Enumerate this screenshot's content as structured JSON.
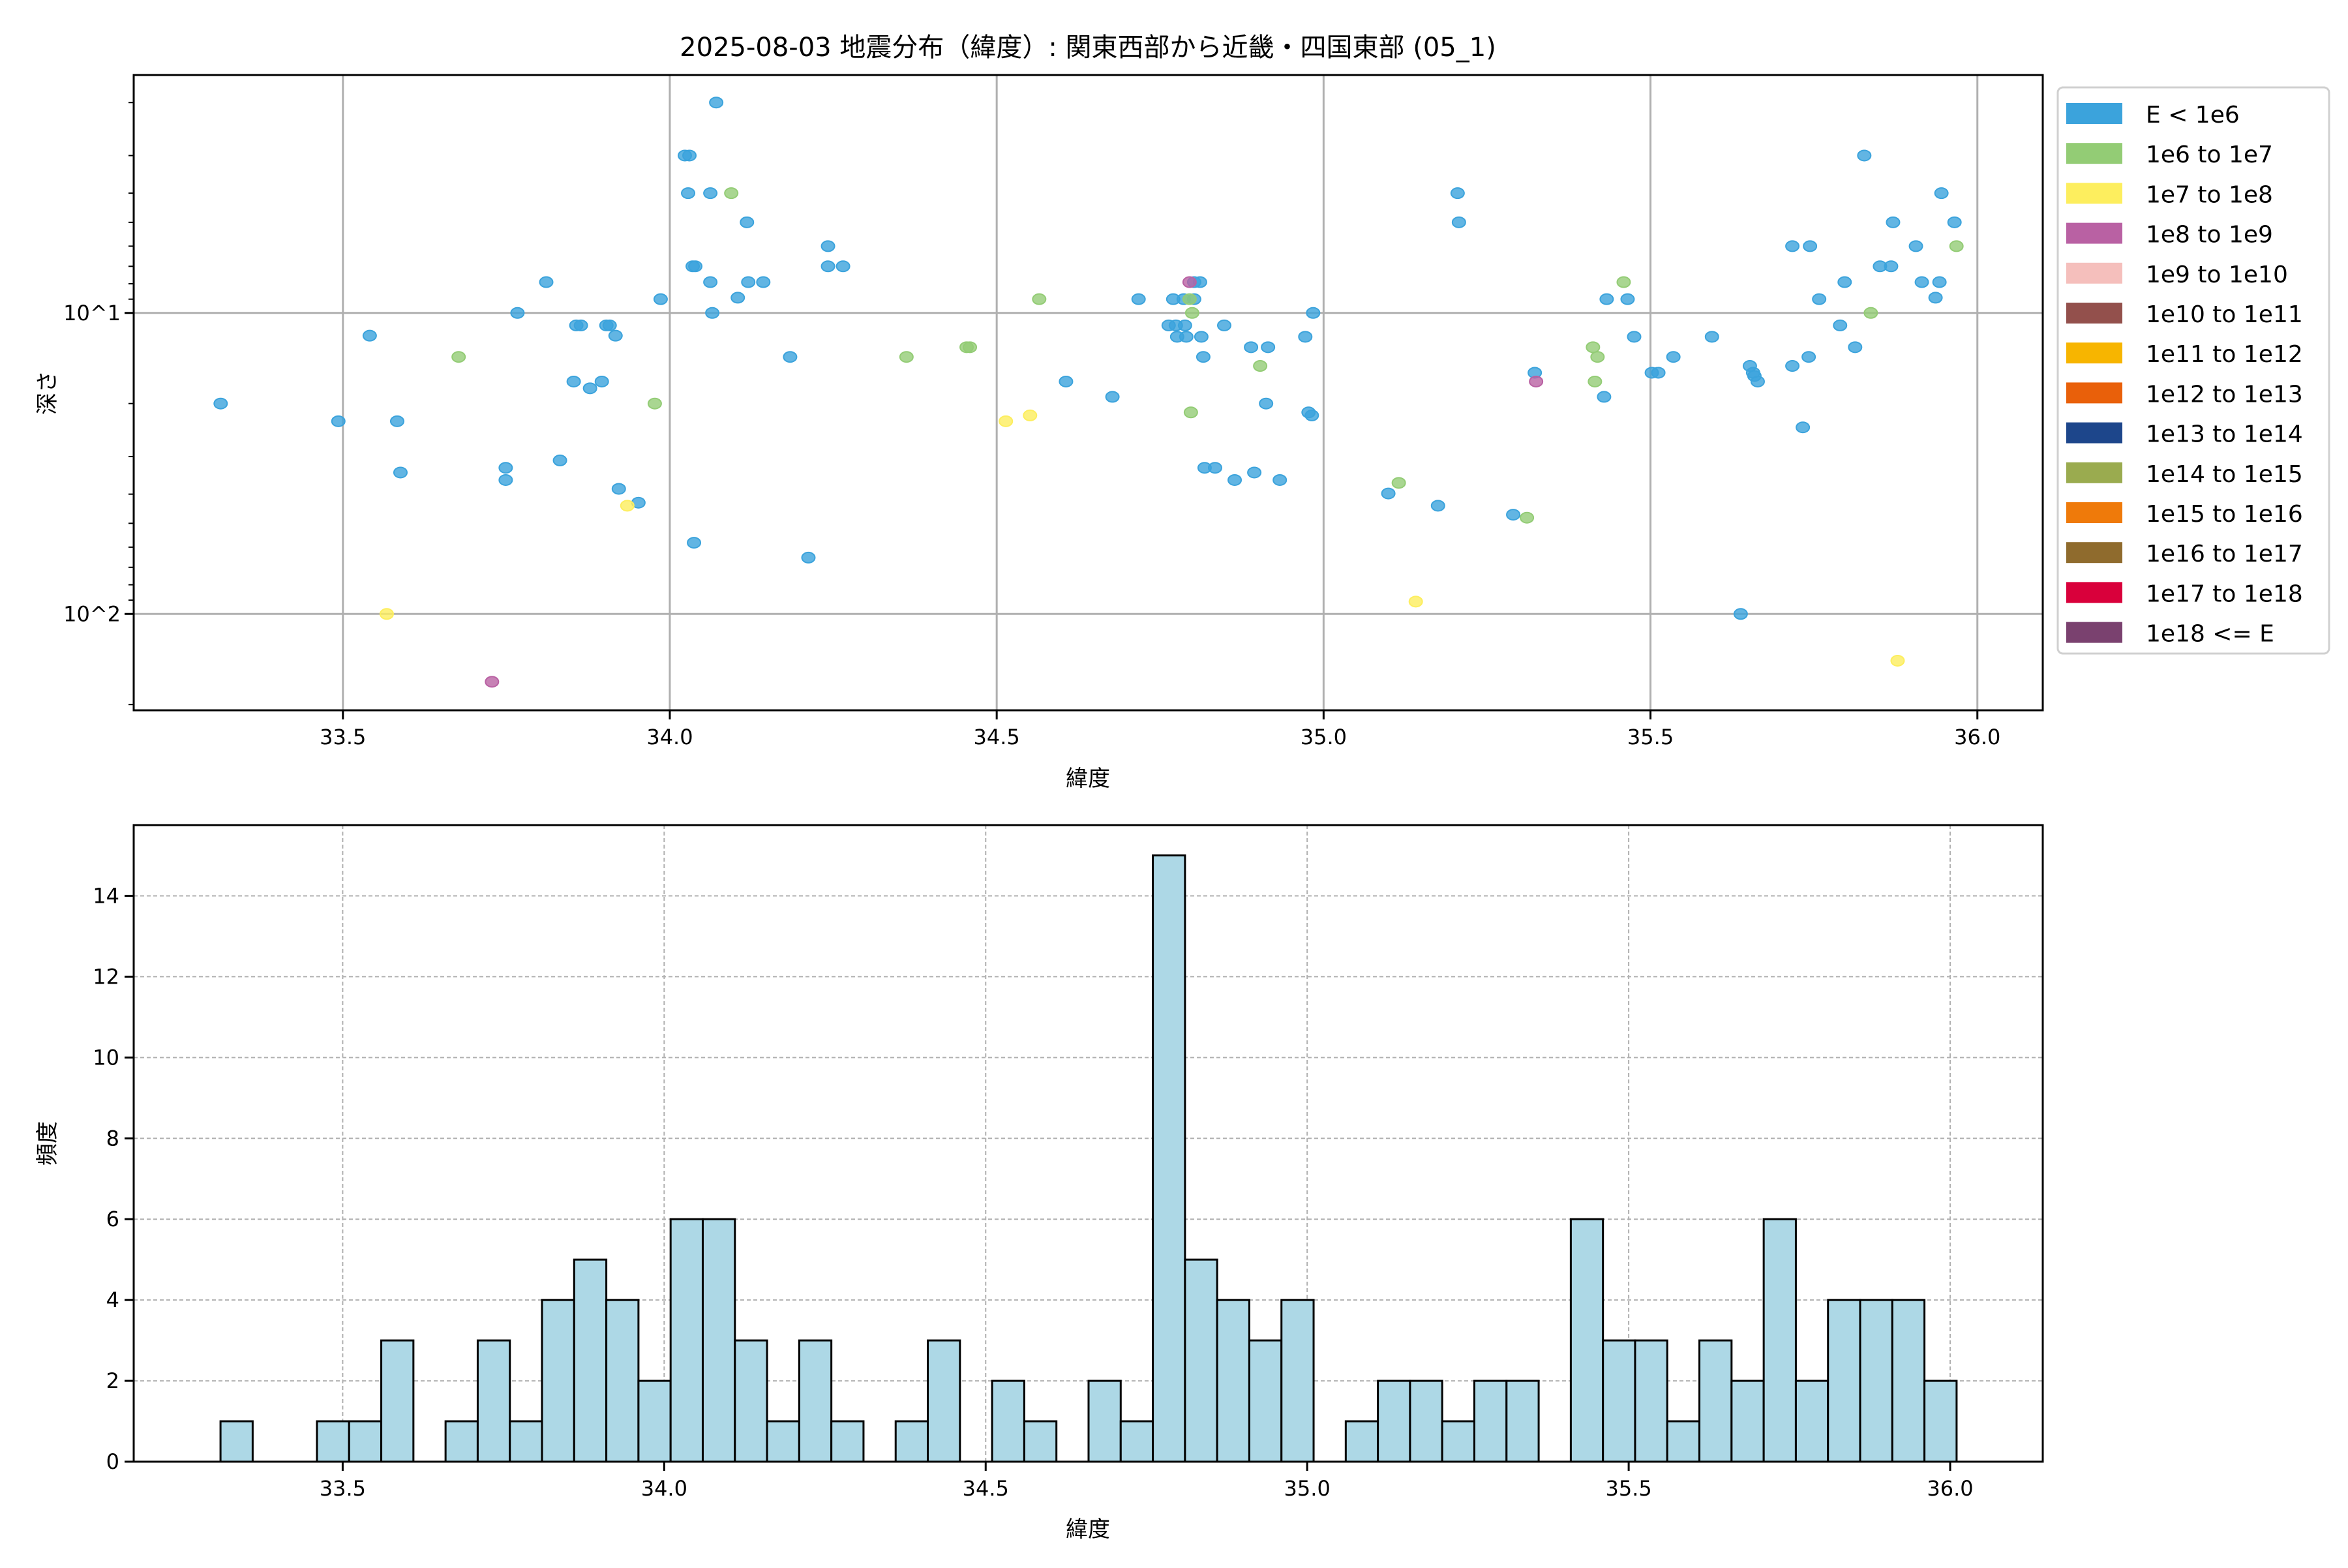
{
  "title": "2025-08-03 地震分布（緯度）: 関東西部から近畿・四国東部 (05_1)",
  "chart_data": [
    {
      "type": "scatter",
      "xlabel": "緯度",
      "ylabel": "深さ",
      "xlim": [
        33.18,
        36.1
      ],
      "ylim": [
        209,
        1.62
      ],
      "yscale": "log",
      "y_inverted": true,
      "grid": true,
      "x_ticks": [
        33.5,
        34.0,
        34.5,
        35.0,
        35.5,
        36.0
      ],
      "x_tick_labels": [
        "33.5",
        "34.0",
        "34.5",
        "35.0",
        "35.5",
        "36.0"
      ],
      "y_ticks": [
        10,
        100
      ],
      "y_tick_labels": [
        "10^1",
        "10^2"
      ],
      "legend_placement": "outside-right",
      "series": [
        {
          "name": "E < 1e6",
          "color": "#3ba3dc",
          "points": [
            [
              33.313,
              20
            ],
            [
              33.493,
              22.9
            ],
            [
              33.541,
              11.9
            ],
            [
              33.583,
              22.9
            ],
            [
              33.588,
              33.9
            ],
            [
              33.749,
              32.7
            ],
            [
              33.749,
              35.9
            ],
            [
              33.767,
              10
            ],
            [
              33.811,
              7.9
            ],
            [
              33.832,
              30.9
            ],
            [
              33.853,
              16.9
            ],
            [
              33.857,
              11
            ],
            [
              33.864,
              11
            ],
            [
              33.878,
              17.8
            ],
            [
              33.896,
              16.9
            ],
            [
              33.903,
              11
            ],
            [
              33.908,
              11
            ],
            [
              33.917,
              11.9
            ],
            [
              33.922,
              38.4
            ],
            [
              33.952,
              42.7
            ],
            [
              33.986,
              9.0
            ],
            [
              34.023,
              3.0
            ],
            [
              34.03,
              3.0
            ],
            [
              34.028,
              4.0
            ],
            [
              34.035,
              7.0
            ],
            [
              34.039,
              7.0
            ],
            [
              34.037,
              58
            ],
            [
              34.062,
              4.0
            ],
            [
              34.071,
              2.0
            ],
            [
              34.104,
              8.9
            ],
            [
              34.118,
              5.0
            ],
            [
              34.12,
              7.9
            ],
            [
              34.065,
              10
            ],
            [
              34.143,
              7.9
            ],
            [
              34.062,
              7.9
            ],
            [
              34.184,
              14
            ],
            [
              34.212,
              65
            ],
            [
              34.242,
              6.0
            ],
            [
              34.242,
              7.0
            ],
            [
              34.265,
              7.0
            ],
            [
              34.606,
              16.9
            ],
            [
              34.677,
              19
            ],
            [
              34.717,
              9
            ],
            [
              34.763,
              11
            ],
            [
              34.77,
              9
            ],
            [
              34.774,
              11
            ],
            [
              34.776,
              12
            ],
            [
              34.786,
              9
            ],
            [
              34.788,
              11
            ],
            [
              34.79,
              12
            ],
            [
              34.802,
              7.9
            ],
            [
              34.811,
              7.9
            ],
            [
              34.816,
              14
            ],
            [
              34.813,
              12
            ],
            [
              34.802,
              9
            ],
            [
              34.818,
              32.7
            ],
            [
              34.834,
              32.7
            ],
            [
              34.848,
              11
            ],
            [
              34.864,
              35.9
            ],
            [
              34.889,
              13
            ],
            [
              34.915,
              13
            ],
            [
              34.894,
              33.9
            ],
            [
              34.912,
              20
            ],
            [
              34.933,
              35.9
            ],
            [
              34.972,
              12
            ],
            [
              34.977,
              21.4
            ],
            [
              34.982,
              21.9
            ],
            [
              34.984,
              10
            ],
            [
              35.099,
              39.8
            ],
            [
              35.175,
              43.7
            ],
            [
              35.205,
              4.0
            ],
            [
              35.207,
              5.0
            ],
            [
              35.29,
              46.8
            ],
            [
              35.323,
              15.8
            ],
            [
              35.429,
              19
            ],
            [
              35.433,
              9
            ],
            [
              35.465,
              9
            ],
            [
              35.475,
              12
            ],
            [
              35.502,
              15.8
            ],
            [
              35.512,
              15.8
            ],
            [
              35.535,
              14
            ],
            [
              35.594,
              12
            ],
            [
              35.638,
              100
            ],
            [
              35.652,
              15
            ],
            [
              35.657,
              15.8
            ],
            [
              35.659,
              16.2
            ],
            [
              35.664,
              16.9
            ],
            [
              35.717,
              15
            ],
            [
              35.717,
              6.0
            ],
            [
              35.744,
              6.0
            ],
            [
              35.733,
              24
            ],
            [
              35.742,
              14
            ],
            [
              35.758,
              9
            ],
            [
              35.79,
              11
            ],
            [
              35.797,
              7.9
            ],
            [
              35.813,
              13
            ],
            [
              35.827,
              3.0
            ],
            [
              35.851,
              7
            ],
            [
              35.868,
              7
            ],
            [
              35.871,
              5
            ],
            [
              35.906,
              6
            ],
            [
              35.915,
              7.9
            ],
            [
              35.936,
              8.9
            ],
            [
              35.942,
              7.9
            ],
            [
              35.945,
              4
            ],
            [
              35.965,
              5
            ]
          ]
        },
        {
          "name": "1e6 to 1e7",
          "color": "#93cc75",
          "points": [
            [
              33.677,
              14
            ],
            [
              33.977,
              20
            ],
            [
              34.094,
              4.0
            ],
            [
              34.362,
              14
            ],
            [
              34.454,
              13
            ],
            [
              34.459,
              13
            ],
            [
              34.565,
              9.0
            ],
            [
              34.795,
              9
            ],
            [
              34.799,
              10
            ],
            [
              34.797,
              21.4
            ],
            [
              34.903,
              15
            ],
            [
              35.115,
              36.7
            ],
            [
              35.311,
              47.9
            ],
            [
              35.412,
              13
            ],
            [
              35.419,
              14
            ],
            [
              35.415,
              16.9
            ],
            [
              35.459,
              7.9
            ],
            [
              35.837,
              10
            ],
            [
              35.968,
              6
            ]
          ]
        },
        {
          "name": "1e7 to 1e8",
          "color": "#fdee5e",
          "points": [
            [
              33.567,
              100
            ],
            [
              33.935,
              43.7
            ],
            [
              34.514,
              22.9
            ],
            [
              34.551,
              21.9
            ],
            [
              35.141,
              91
            ],
            [
              35.878,
              143
            ]
          ]
        },
        {
          "name": "1e8 to 1e9",
          "color": "#b961a3",
          "points": [
            [
              33.728,
              168
            ],
            [
              34.795,
              7.9
            ],
            [
              35.325,
              16.9
            ]
          ]
        },
        {
          "name": "1e9 to 1e10",
          "color": "#f5bfbc",
          "points": []
        },
        {
          "name": "1e10 to 1e11",
          "color": "#93504c",
          "points": []
        },
        {
          "name": "1e11 to 1e12",
          "color": "#f7b500",
          "points": []
        },
        {
          "name": "1e12 to 1e13",
          "color": "#e9600a",
          "points": []
        },
        {
          "name": "1e13 to 1e14",
          "color": "#1d468b",
          "points": []
        },
        {
          "name": "1e14 to 1e15",
          "color": "#9aab4f",
          "points": []
        },
        {
          "name": "1e15 to 1e16",
          "color": "#ef7a0a",
          "points": []
        },
        {
          "name": "1e16 to 1e17",
          "color": "#8f6b2d",
          "points": []
        },
        {
          "name": "1e17 to 1e18",
          "color": "#d9003b",
          "points": []
        },
        {
          "name": "1e18 <= E",
          "color": "#7a416f",
          "points": []
        }
      ]
    },
    {
      "type": "bar",
      "subtype": "histogram",
      "xlabel": "緯度",
      "ylabel": "頻度",
      "xlim": [
        33.175,
        36.144
      ],
      "ylim": [
        0,
        15.75
      ],
      "grid": "dashed",
      "bar_color": "#add8e6",
      "edge_color": "#000000",
      "bin_start": 33.31,
      "bin_width": 0.05,
      "counts": [
        1,
        0,
        0,
        1,
        1,
        3,
        0,
        1,
        3,
        1,
        4,
        5,
        4,
        2,
        6,
        6,
        3,
        1,
        3,
        1,
        0,
        1,
        3,
        0,
        2,
        1,
        0,
        2,
        1,
        15,
        5,
        4,
        3,
        4,
        0,
        1,
        2,
        2,
        1,
        2,
        2,
        0,
        6,
        3,
        3,
        1,
        3,
        2,
        6,
        2,
        4,
        4,
        4,
        2
      ],
      "x_ticks": [
        33.5,
        34.0,
        34.5,
        35.0,
        35.5,
        36.0
      ],
      "x_tick_labels": [
        "33.5",
        "34.0",
        "34.5",
        "35.0",
        "35.5",
        "36.0"
      ],
      "y_ticks": [
        0,
        2,
        4,
        6,
        8,
        10,
        12,
        14
      ],
      "y_tick_labels": [
        "0",
        "2",
        "4",
        "6",
        "8",
        "10",
        "12",
        "14"
      ]
    }
  ]
}
